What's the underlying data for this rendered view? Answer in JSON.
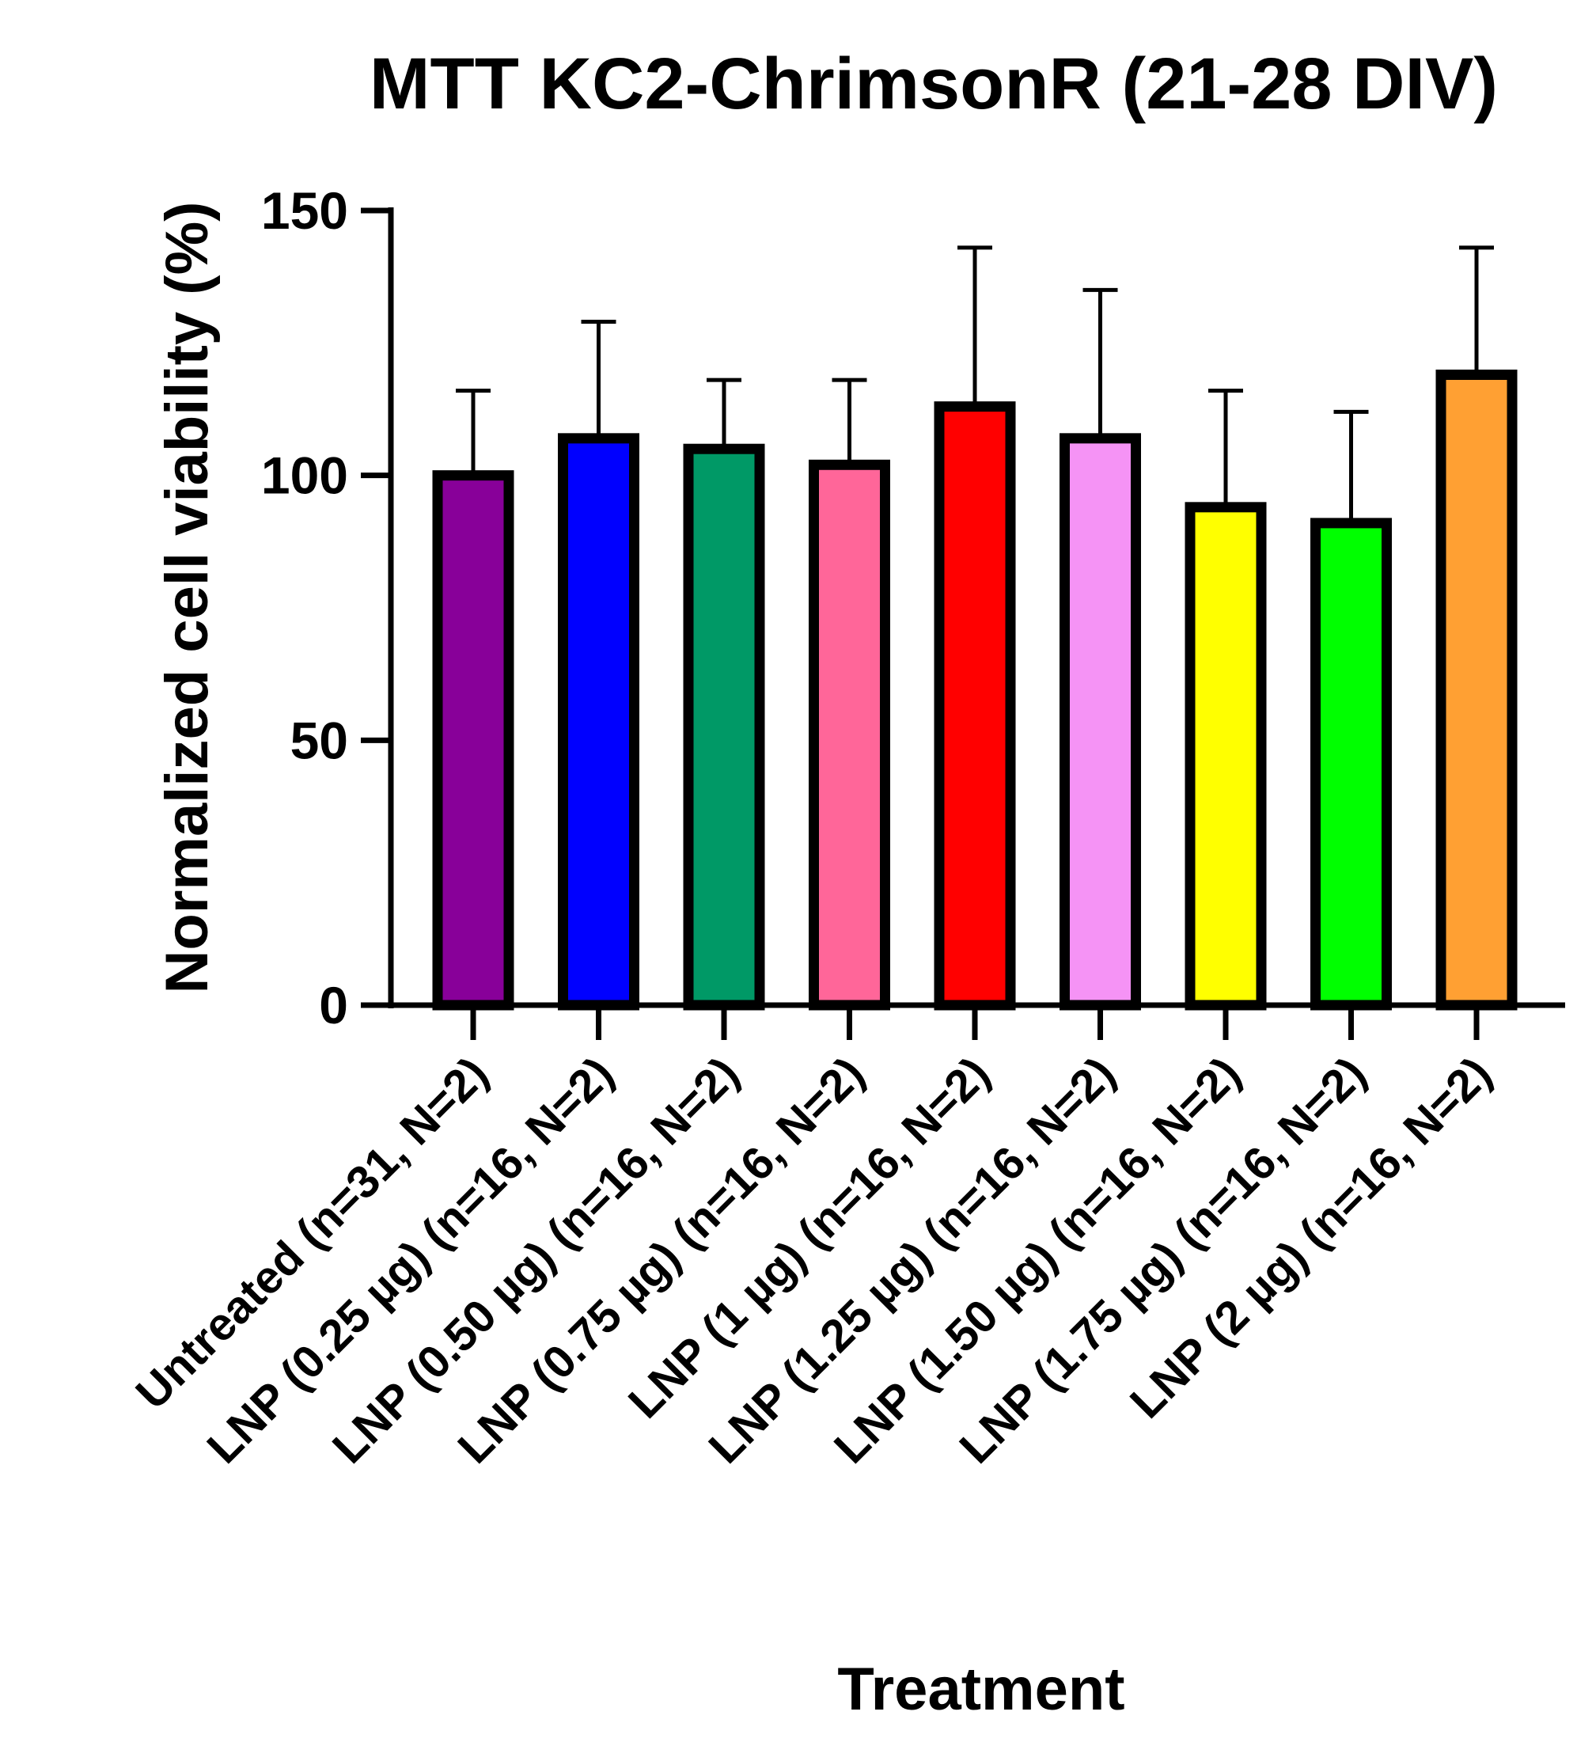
{
  "chart_data": {
    "type": "bar",
    "title": "MTT KC2-ChrimsonR (21-28 DIV)",
    "xlabel": "Treatment",
    "ylabel": "Normalized cell viability (%)",
    "ylim": [
      0,
      150
    ],
    "yticks": [
      0,
      50,
      100,
      150
    ],
    "grid": false,
    "categories": [
      "Untreated (n=31, N=2)",
      "LNP (0.25 µg) (n=16, N=2)",
      "LNP (0.50 µg) (n=16, N=2)",
      "LNP (0.75 µg) (n=16, N=2)",
      "LNP (1 µg) (n=16, N=2)",
      "LNP (1.25 µg) (n=16, N=2)",
      "LNP (1.50 µg) (n=16, N=2)",
      "LNP (1.75 µg) (n=16, N=2)",
      "LNP (2 µg) (n=16, N=2)"
    ],
    "values": [
      100,
      107,
      105,
      102,
      113,
      107,
      94,
      91,
      119
    ],
    "error_upper": [
      116,
      129,
      118,
      118,
      143,
      135,
      116,
      112,
      143
    ],
    "colors": [
      "#880099",
      "#0000ff",
      "#009966",
      "#ff6699",
      "#ff0000",
      "#f593f5",
      "#ffff00",
      "#00ff00",
      "#ffa033"
    ]
  }
}
